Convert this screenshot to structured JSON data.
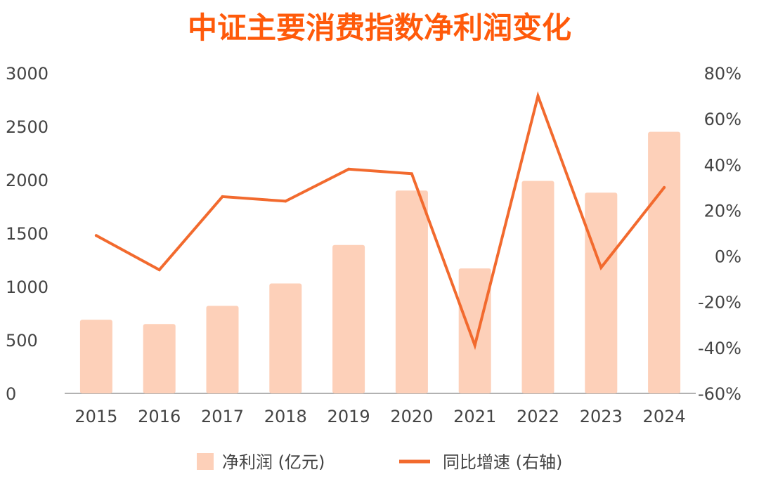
{
  "chart_data": {
    "type": "bar",
    "title": "中证主要消费指数净利润变化",
    "categories": [
      "2015",
      "2016",
      "2017",
      "2018",
      "2019",
      "2020",
      "2021",
      "2022",
      "2023",
      "2024"
    ],
    "series": [
      {
        "name": "净利润 (亿元)",
        "type": "bar",
        "axis": "left",
        "values": [
          690,
          650,
          820,
          1030,
          1390,
          1900,
          1170,
          1990,
          1880,
          2450
        ]
      },
      {
        "name": "同比增速 (右轴)",
        "type": "line",
        "axis": "right",
        "values": [
          9,
          -6,
          26,
          24,
          38,
          36,
          -39,
          70,
          -5,
          30
        ]
      }
    ],
    "y_left": {
      "min": 0,
      "max": 3000,
      "ticks": [
        "0",
        "500",
        "1000",
        "1500",
        "2000",
        "2500",
        "3000"
      ]
    },
    "y_right": {
      "min": -60,
      "max": 80,
      "ticks": [
        "-60%",
        "-40%",
        "-20%",
        "0%",
        "20%",
        "40%",
        "60%",
        "80%"
      ]
    },
    "legend_position": "bottom-center",
    "grid": false
  },
  "colors": {
    "title": "#ff5a0a",
    "bar": "#fdd0b9",
    "line": "#f26a2e",
    "axis": "#999999",
    "text": "#444444"
  }
}
